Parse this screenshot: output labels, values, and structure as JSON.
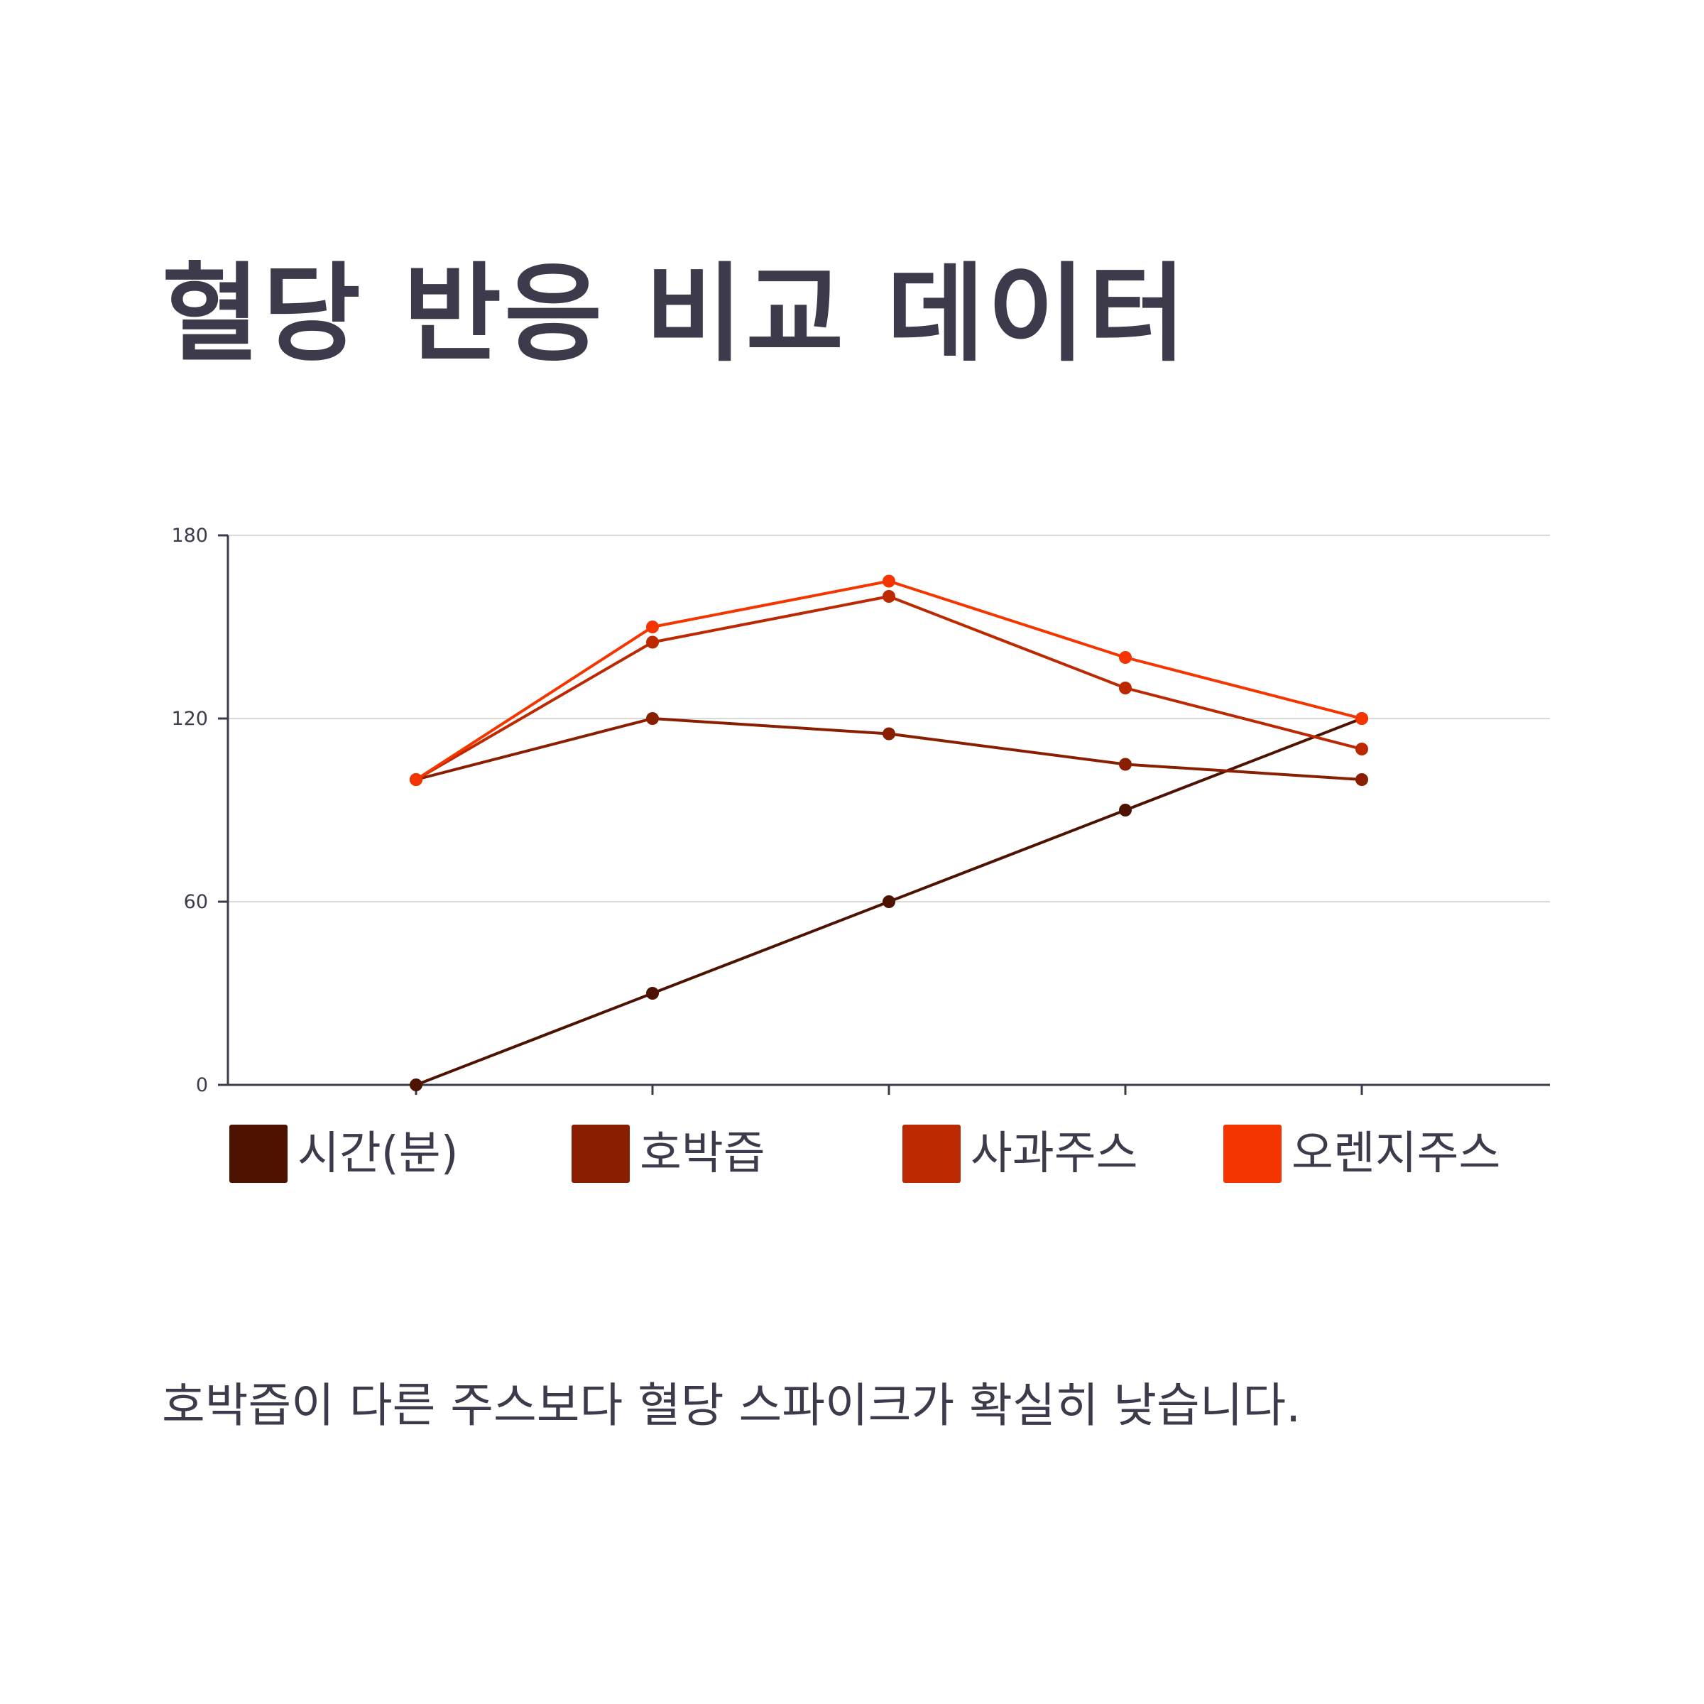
{
  "title": "혈당 반응 비교 데이터",
  "caption": "호박즙이 다른 주스보다 혈당 스파이크가 확실히 낮습니다.",
  "chart_data": {
    "type": "line",
    "title": "혈당 반응 비교 데이터",
    "xlabel": "",
    "ylabel": "",
    "x": [
      1,
      2,
      3,
      4,
      5
    ],
    "ylim": [
      0,
      180
    ],
    "yticks": [
      0,
      60,
      120,
      180
    ],
    "ytick_labels": [
      "0",
      "60",
      "120",
      "180"
    ],
    "grid": true,
    "legend_position": "bottom",
    "series": [
      {
        "name": "시간(분)",
        "color": "#4e1200",
        "values": [
          0,
          30,
          60,
          90,
          120
        ]
      },
      {
        "name": "호박즙",
        "color": "#8a1e00",
        "values": [
          100,
          120,
          115,
          105,
          100
        ]
      },
      {
        "name": "사과주스",
        "color": "#bc2800",
        "values": [
          100,
          145,
          160,
          130,
          110
        ]
      },
      {
        "name": "오렌지주스",
        "color": "#f53500",
        "values": [
          100,
          150,
          165,
          140,
          120
        ]
      }
    ]
  },
  "colors": {
    "text": "#3d3a4b",
    "axis": "#3d3a4b",
    "grid": "#d9d9d9"
  }
}
